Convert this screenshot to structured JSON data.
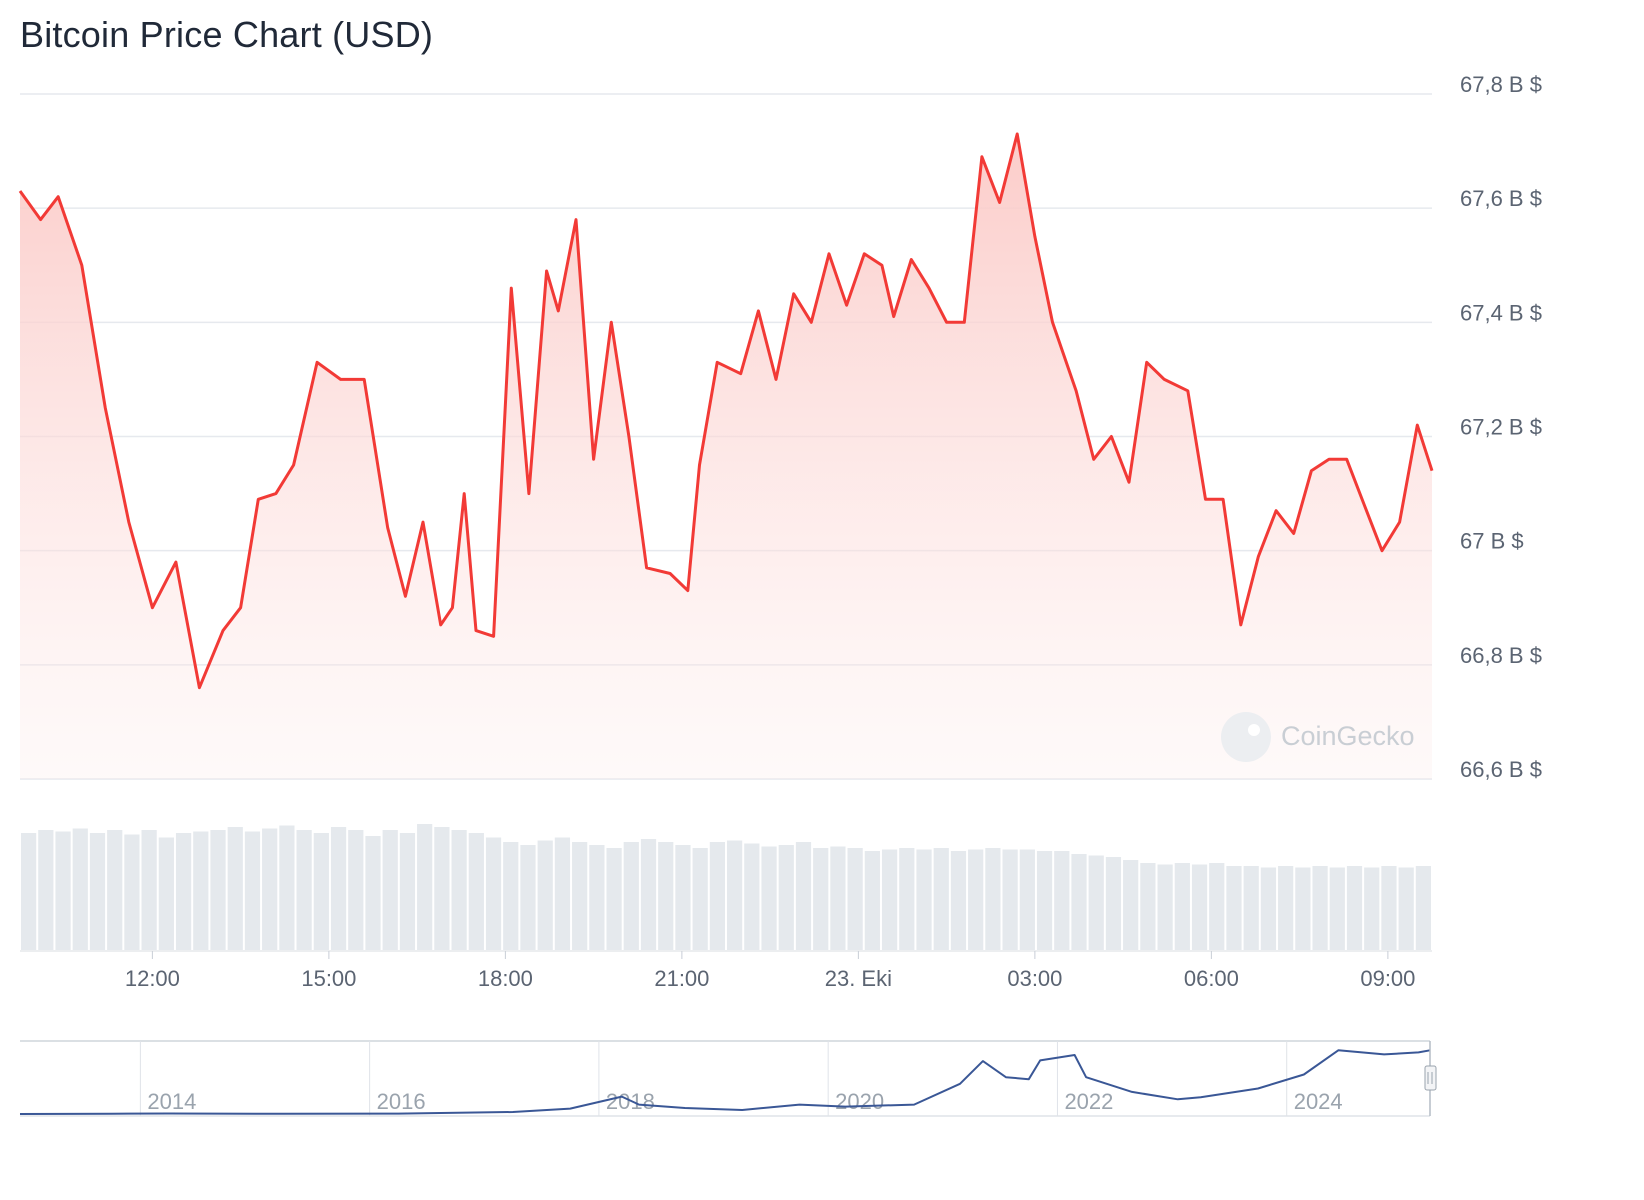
{
  "chart_data": {
    "type": "area",
    "title": "Bitcoin Price Chart (USD)",
    "y_axis": {
      "ticks": [
        66.6,
        66.8,
        67.0,
        67.2,
        67.4,
        67.6,
        67.8
      ],
      "tick_labels": [
        "66,6 B $",
        "66,8 B $",
        "67 B $",
        "67,2 B $",
        "67,4 B $",
        "67,6 B $",
        "67,8 B $"
      ],
      "ylim": [
        66.6,
        67.8
      ],
      "position": "right"
    },
    "x_axis": {
      "tick_labels": [
        "12:00",
        "15:00",
        "18:00",
        "21:00",
        "23. Eki",
        "03:00",
        "06:00",
        "09:00"
      ],
      "tick_hours": [
        12,
        15,
        18,
        21,
        24,
        27,
        30,
        33
      ],
      "xlim": [
        9.75,
        33.75
      ]
    },
    "grid": true,
    "series": [
      {
        "color": "#f23a36",
        "fill": "#fbd5d3",
        "x": [
          9.75,
          10.1,
          10.4,
          10.8,
          11.2,
          11.6,
          12.0,
          12.4,
          12.8,
          13.2,
          13.5,
          13.8,
          14.1,
          14.4,
          14.8,
          15.2,
          15.6,
          16.0,
          16.3,
          16.6,
          16.9,
          17.1,
          17.3,
          17.5,
          17.8,
          18.1,
          18.4,
          18.7,
          18.9,
          19.2,
          19.5,
          19.8,
          20.1,
          20.4,
          20.8,
          21.1,
          21.3,
          21.6,
          22.0,
          22.3,
          22.6,
          22.9,
          23.2,
          23.5,
          23.8,
          24.1,
          24.4,
          24.6,
          24.9,
          25.2,
          25.5,
          25.8,
          26.1,
          26.4,
          26.7,
          27.0,
          27.3,
          27.7,
          28.0,
          28.3,
          28.6,
          28.9,
          29.2,
          29.6,
          29.9,
          30.2,
          30.5,
          30.8,
          31.1,
          31.4,
          31.7,
          32.0,
          32.3,
          32.6,
          32.9,
          33.2,
          33.5,
          33.75
        ],
        "y": [
          67.63,
          67.58,
          67.62,
          67.5,
          67.25,
          67.05,
          66.9,
          66.98,
          66.76,
          66.86,
          66.9,
          67.09,
          67.1,
          67.15,
          67.33,
          67.3,
          67.3,
          67.04,
          66.92,
          67.05,
          66.87,
          66.9,
          67.1,
          66.86,
          66.85,
          67.46,
          67.1,
          67.49,
          67.42,
          67.58,
          67.16,
          67.4,
          67.2,
          66.97,
          66.96,
          66.93,
          67.15,
          67.33,
          67.31,
          67.42,
          67.3,
          67.45,
          67.4,
          67.52,
          67.43,
          67.52,
          67.5,
          67.41,
          67.51,
          67.46,
          67.4,
          67.4,
          67.69,
          67.61,
          67.73,
          67.55,
          67.4,
          67.28,
          67.16,
          67.2,
          67.12,
          67.33,
          67.3,
          67.28,
          67.09,
          67.09,
          66.87,
          66.99,
          67.07,
          67.03,
          67.14,
          67.16,
          67.16,
          67.08,
          67.0,
          67.05,
          67.22,
          67.14
        ]
      }
    ],
    "volume": {
      "color": "#e5e9ed",
      "values": [
        0.78,
        0.8,
        0.79,
        0.81,
        0.78,
        0.8,
        0.77,
        0.8,
        0.75,
        0.78,
        0.79,
        0.8,
        0.82,
        0.79,
        0.81,
        0.83,
        0.8,
        0.78,
        0.82,
        0.8,
        0.76,
        0.8,
        0.78,
        0.84,
        0.82,
        0.8,
        0.78,
        0.75,
        0.72,
        0.7,
        0.73,
        0.75,
        0.72,
        0.7,
        0.68,
        0.72,
        0.74,
        0.72,
        0.7,
        0.68,
        0.72,
        0.73,
        0.71,
        0.69,
        0.7,
        0.72,
        0.68,
        0.69,
        0.68,
        0.66,
        0.67,
        0.68,
        0.67,
        0.68,
        0.66,
        0.67,
        0.68,
        0.67,
        0.67,
        0.66,
        0.66,
        0.64,
        0.63,
        0.62,
        0.6,
        0.58,
        0.57,
        0.58,
        0.57,
        0.58,
        0.56,
        0.56,
        0.55,
        0.56,
        0.55,
        0.56,
        0.55,
        0.56,
        0.55,
        0.56,
        0.55,
        0.56
      ],
      "max_scale": 1.0
    }
  },
  "navigator": {
    "labels": [
      "2014",
      "2016",
      "2018",
      "2020",
      "2022",
      "2024"
    ],
    "line_color": "#3a5796",
    "x": [
      2012.7,
      2013.5,
      2014.0,
      2015.0,
      2016.0,
      2017.0,
      2017.5,
      2017.95,
      2018.1,
      2018.5,
      2019.0,
      2019.5,
      2019.9,
      2020.5,
      2020.9,
      2021.1,
      2021.3,
      2021.5,
      2021.6,
      2021.9,
      2022.0,
      2022.4,
      2022.8,
      2023.0,
      2023.5,
      2023.9,
      2024.2,
      2024.6,
      2024.9,
      2025.0
    ],
    "y": [
      0.0,
      0.004,
      0.007,
      0.003,
      0.006,
      0.03,
      0.08,
      0.26,
      0.14,
      0.09,
      0.06,
      0.14,
      0.11,
      0.14,
      0.45,
      0.79,
      0.55,
      0.52,
      0.8,
      0.88,
      0.55,
      0.33,
      0.22,
      0.25,
      0.38,
      0.59,
      0.95,
      0.89,
      0.92,
      0.95
    ]
  },
  "watermark": {
    "text": "CoinGecko"
  }
}
